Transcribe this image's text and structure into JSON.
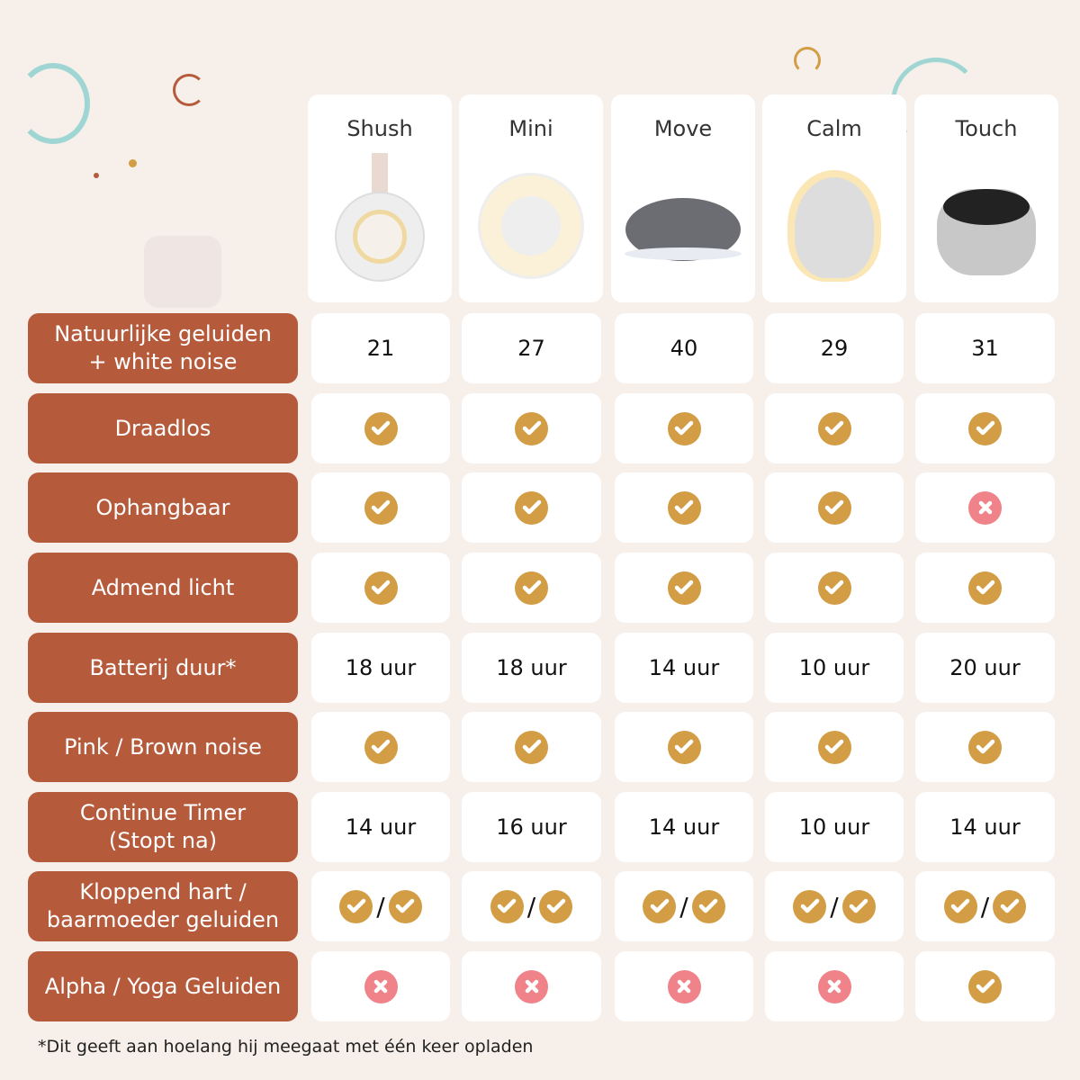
{
  "colors": {
    "background": "#f6efea",
    "label": "#b65a3c",
    "check": "#d29d45",
    "cross": "#ef8389"
  },
  "products": [
    {
      "name": "Shush"
    },
    {
      "name": "Mini"
    },
    {
      "name": "Move"
    },
    {
      "name": "Calm"
    },
    {
      "name": "Touch"
    }
  ],
  "rows": [
    {
      "label": "Natuurlijke geluiden\n+ white noise",
      "values": [
        "21",
        "27",
        "40",
        "29",
        "31"
      ]
    },
    {
      "label": "Draadlos",
      "values": [
        "check",
        "check",
        "check",
        "check",
        "check"
      ]
    },
    {
      "label": "Ophangbaar",
      "values": [
        "check",
        "check",
        "check",
        "check",
        "cross"
      ]
    },
    {
      "label": "Admend licht",
      "values": [
        "check",
        "check",
        "check",
        "check",
        "check"
      ]
    },
    {
      "label": "Batterij duur*",
      "values": [
        "18 uur",
        "18 uur",
        "14 uur",
        "10 uur",
        "20 uur"
      ]
    },
    {
      "label": "Pink / Brown noise",
      "values": [
        "check",
        "check",
        "check",
        "check",
        "check"
      ]
    },
    {
      "label": "Continue Timer\n(Stopt na)",
      "values": [
        "14 uur",
        "16 uur",
        "14 uur",
        "10 uur",
        "14 uur"
      ]
    },
    {
      "label": "Kloppend hart /\nbaarmoeder geluiden",
      "values": [
        "check/check",
        "check/check",
        "check/check",
        "check/check",
        "check/check"
      ]
    },
    {
      "label": "Alpha / Yoga Geluiden",
      "values": [
        "cross",
        "cross",
        "cross",
        "cross",
        "check"
      ]
    }
  ],
  "footnote": "*Dit geeft aan hoelang hij meegaat met één keer opladen"
}
